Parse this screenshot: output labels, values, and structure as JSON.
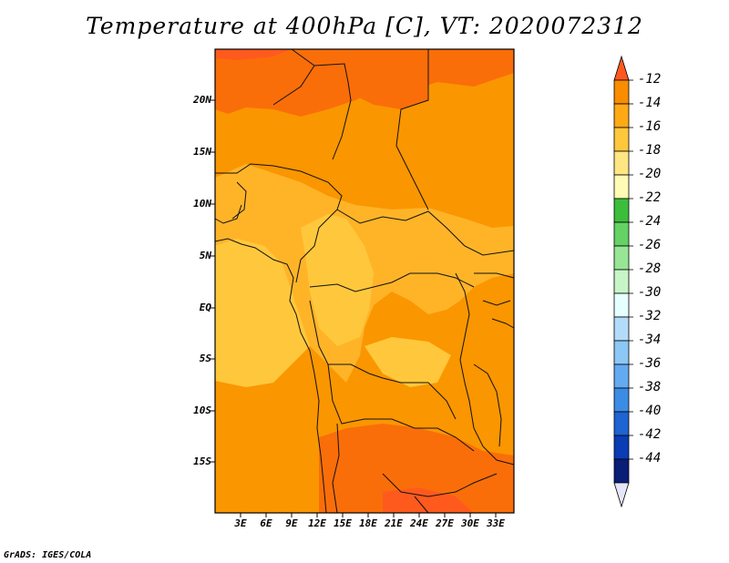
{
  "title": "Temperature at 400hPa [C], VT: 2020072312",
  "credit": "GrADS: IGES/COLA",
  "lat_labels": [
    "20N",
    "15N",
    "10N",
    "5N",
    "EQ",
    "5S",
    "10S",
    "15S"
  ],
  "lon_labels": [
    "3E",
    "6E",
    "9E",
    "12E",
    "15E",
    "18E",
    "21E",
    "24E",
    "27E",
    "30E",
    "33E"
  ],
  "colorbar": {
    "labels": [
      "-12",
      "-14",
      "-16",
      "-18",
      "-20",
      "-22",
      "-24",
      "-26",
      "-28",
      "-30",
      "-32",
      "-34",
      "-36",
      "-38",
      "-40",
      "-42",
      "-44"
    ],
    "colors": [
      "#ff5a1e",
      "#fa8c00",
      "#ffaa14",
      "#ffc83c",
      "#ffe682",
      "#fffab4",
      "#3cbe3c",
      "#64d264",
      "#96e696",
      "#c8f5c8",
      "#e6ffff",
      "#b4dcfa",
      "#8cc8f5",
      "#64aaf0",
      "#3c8ce6",
      "#1e64d2",
      "#0a3cb4",
      "#0a1e78",
      "#e6e6fa"
    ]
  },
  "map_colors": {
    "dark": "#fa6e0a",
    "mid": "#fa9600",
    "light": "#ffb428",
    "pale": "#ffc83c"
  }
}
